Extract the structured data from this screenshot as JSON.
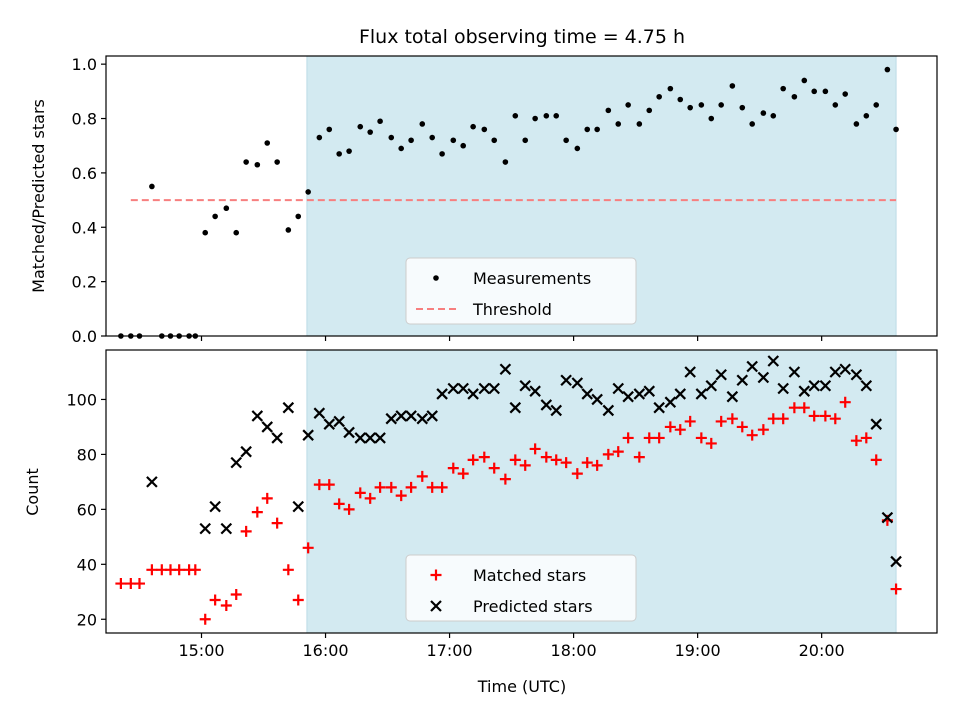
{
  "chart_data": [
    {
      "type": "scatter",
      "title": "Flux total observing time = 4.75 h",
      "xlabel": "",
      "ylabel": "Matched/Predicted stars",
      "xlim": [
        14.23,
        20.93
      ],
      "ylim": [
        0.0,
        1.03
      ],
      "yticks": [
        0.0,
        0.2,
        0.4,
        0.6,
        0.8,
        1.0
      ],
      "ytick_labels": [
        "0.0",
        "0.2",
        "0.4",
        "0.6",
        "0.8",
        "1.0"
      ],
      "shaded_span": [
        15.85,
        20.6
      ],
      "legend_position": "lower-center",
      "series": [
        {
          "name": "Measurements",
          "style": "dot",
          "color": "#000000",
          "x": [
            14.35,
            14.43,
            14.5,
            14.6,
            14.68,
            14.75,
            14.82,
            14.9,
            14.95,
            15.03,
            15.11,
            15.2,
            15.28,
            15.36,
            15.45,
            15.53,
            15.61,
            15.7,
            15.78,
            15.86,
            15.95,
            16.03,
            16.11,
            16.19,
            16.28,
            16.36,
            16.44,
            16.53,
            16.61,
            16.69,
            16.78,
            16.86,
            16.94,
            17.03,
            17.11,
            17.19,
            17.28,
            17.36,
            17.45,
            17.53,
            17.61,
            17.69,
            17.78,
            17.86,
            17.94,
            18.03,
            18.11,
            18.19,
            18.28,
            18.36,
            18.44,
            18.53,
            18.61,
            18.69,
            18.78,
            18.86,
            18.94,
            19.03,
            19.11,
            19.19,
            19.28,
            19.36,
            19.44,
            19.53,
            19.61,
            19.69,
            19.78,
            19.86,
            19.94,
            20.03,
            20.11,
            20.19,
            20.28,
            20.36,
            20.44,
            20.53,
            20.6
          ],
          "y": [
            0.0,
            0.0,
            0.0,
            0.55,
            0.0,
            0.0,
            0.0,
            0.0,
            0.0,
            0.38,
            0.44,
            0.47,
            0.38,
            0.64,
            0.63,
            0.71,
            0.64,
            0.39,
            0.44,
            0.53,
            0.73,
            0.76,
            0.67,
            0.68,
            0.77,
            0.75,
            0.79,
            0.73,
            0.69,
            0.72,
            0.78,
            0.73,
            0.67,
            0.72,
            0.7,
            0.77,
            0.76,
            0.72,
            0.64,
            0.81,
            0.72,
            0.8,
            0.81,
            0.81,
            0.72,
            0.69,
            0.76,
            0.76,
            0.83,
            0.78,
            0.85,
            0.78,
            0.83,
            0.88,
            0.91,
            0.87,
            0.84,
            0.85,
            0.8,
            0.85,
            0.92,
            0.84,
            0.78,
            0.82,
            0.81,
            0.91,
            0.88,
            0.94,
            0.9,
            0.9,
            0.85,
            0.89,
            0.78,
            0.81,
            0.85,
            0.98,
            0.76
          ]
        },
        {
          "name": "Threshold",
          "style": "dashed-line",
          "color": "#f77f7f",
          "x": [
            14.43,
            20.6
          ],
          "y": [
            0.5,
            0.5
          ]
        }
      ]
    },
    {
      "type": "scatter",
      "title": "",
      "xlabel": "Time (UTC)",
      "ylabel": "Count",
      "xlim": [
        14.23,
        20.93
      ],
      "ylim": [
        15,
        118
      ],
      "yticks": [
        20,
        40,
        60,
        80,
        100
      ],
      "ytick_labels": [
        "20",
        "40",
        "60",
        "80",
        "100"
      ],
      "xticks": [
        15,
        16,
        17,
        18,
        19,
        20
      ],
      "xtick_labels": [
        "15:00",
        "16:00",
        "17:00",
        "18:00",
        "19:00",
        "20:00"
      ],
      "shaded_span": [
        15.85,
        20.6
      ],
      "legend_position": "lower-center",
      "series": [
        {
          "name": "Matched stars",
          "style": "plus",
          "color": "#ff0000",
          "x": [
            14.35,
            14.43,
            14.5,
            14.6,
            14.68,
            14.75,
            14.82,
            14.9,
            14.95,
            15.03,
            15.11,
            15.2,
            15.28,
            15.36,
            15.45,
            15.53,
            15.61,
            15.7,
            15.78,
            15.86,
            15.95,
            16.03,
            16.11,
            16.19,
            16.28,
            16.36,
            16.44,
            16.53,
            16.61,
            16.69,
            16.78,
            16.86,
            16.94,
            17.03,
            17.11,
            17.19,
            17.28,
            17.36,
            17.45,
            17.53,
            17.61,
            17.69,
            17.78,
            17.86,
            17.94,
            18.03,
            18.11,
            18.19,
            18.28,
            18.36,
            18.44,
            18.53,
            18.61,
            18.69,
            18.78,
            18.86,
            18.94,
            19.03,
            19.11,
            19.19,
            19.28,
            19.36,
            19.44,
            19.53,
            19.61,
            19.69,
            19.78,
            19.86,
            19.94,
            20.03,
            20.11,
            20.19,
            20.28,
            20.36,
            20.44,
            20.53,
            20.6
          ],
          "y": [
            33,
            33,
            33,
            38,
            38,
            38,
            38,
            38,
            38,
            20,
            27,
            25,
            29,
            52,
            59,
            64,
            55,
            38,
            27,
            46,
            69,
            69,
            62,
            60,
            66,
            64,
            68,
            68,
            65,
            68,
            72,
            68,
            68,
            75,
            73,
            78,
            79,
            75,
            71,
            78,
            76,
            82,
            79,
            78,
            77,
            73,
            77,
            76,
            80,
            81,
            86,
            79,
            86,
            86,
            90,
            89,
            92,
            86,
            84,
            92,
            93,
            90,
            87,
            89,
            93,
            93,
            97,
            97,
            94,
            94,
            93,
            99,
            85,
            86,
            78,
            56,
            31
          ]
        },
        {
          "name": "Predicted stars",
          "style": "x",
          "color": "#000000",
          "x": [
            14.6,
            15.03,
            15.11,
            15.2,
            15.28,
            15.36,
            15.45,
            15.53,
            15.61,
            15.7,
            15.78,
            15.86,
            15.95,
            16.03,
            16.11,
            16.19,
            16.28,
            16.36,
            16.44,
            16.53,
            16.61,
            16.69,
            16.78,
            16.86,
            16.94,
            17.03,
            17.11,
            17.19,
            17.28,
            17.36,
            17.45,
            17.53,
            17.61,
            17.69,
            17.78,
            17.86,
            17.94,
            18.03,
            18.11,
            18.19,
            18.28,
            18.36,
            18.44,
            18.53,
            18.61,
            18.69,
            18.78,
            18.86,
            18.94,
            19.03,
            19.11,
            19.19,
            19.28,
            19.36,
            19.44,
            19.53,
            19.61,
            19.69,
            19.78,
            19.86,
            19.94,
            20.03,
            20.11,
            20.19,
            20.28,
            20.36,
            20.44,
            20.53,
            20.6
          ],
          "y": [
            70,
            53,
            61,
            53,
            77,
            81,
            94,
            90,
            86,
            97,
            61,
            87,
            95,
            91,
            92,
            88,
            86,
            86,
            86,
            93,
            94,
            94,
            93,
            94,
            102,
            104,
            104,
            102,
            104,
            104,
            111,
            97,
            105,
            103,
            98,
            96,
            107,
            106,
            102,
            100,
            96,
            104,
            101,
            102,
            103,
            97,
            99,
            102,
            110,
            102,
            105,
            109,
            101,
            107,
            112,
            108,
            114,
            104,
            110,
            103,
            105,
            105,
            110,
            111,
            109,
            105,
            91,
            57,
            41
          ]
        }
      ]
    }
  ]
}
